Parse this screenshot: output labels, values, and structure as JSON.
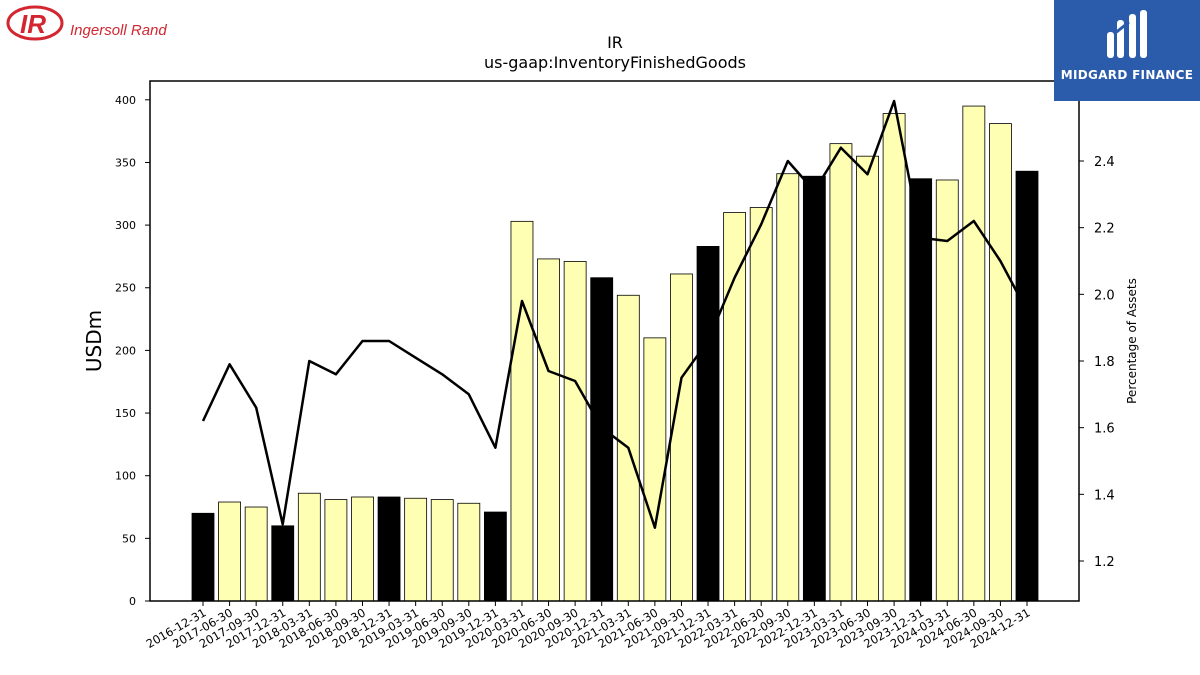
{
  "logos": {
    "company_name": "Ingersoll Rand",
    "company_mark": "IR",
    "publisher_name": "MIDGARD FINANCE"
  },
  "chart_data": {
    "type": "bar",
    "title": "IR",
    "subtitle": "us-gaap:InventoryFinishedGoods",
    "ylabel": "USDm",
    "y2label": "Percentage of Assets",
    "ylim": [
      0,
      415
    ],
    "y2lim": [
      1.08,
      2.64
    ],
    "yticks": [
      0,
      50,
      100,
      150,
      200,
      250,
      300,
      350,
      400
    ],
    "y2ticks": [
      1.2,
      1.4,
      1.6,
      1.8,
      2.0,
      2.2,
      2.4
    ],
    "categories": [
      "2016-12-31",
      "2017-06-30",
      "2017-09-30",
      "2017-12-31",
      "2018-03-31",
      "2018-06-30",
      "2018-09-30",
      "2018-12-31",
      "2019-03-31",
      "2019-06-30",
      "2019-09-30",
      "2019-12-31",
      "2020-03-31",
      "2020-06-30",
      "2020-09-30",
      "2020-12-31",
      "2021-03-31",
      "2021-06-30",
      "2021-09-30",
      "2021-12-31",
      "2022-03-31",
      "2022-06-30",
      "2022-09-30",
      "2022-12-31",
      "2023-03-31",
      "2023-06-30",
      "2023-09-30",
      "2023-12-31",
      "2024-03-31",
      "2024-06-30",
      "2024-09-30",
      "2024-12-31"
    ],
    "series": [
      {
        "kind": "bar",
        "values": [
          70,
          79,
          75,
          60,
          86,
          81,
          83,
          83,
          82,
          81,
          78,
          71,
          303,
          273,
          271,
          258,
          244,
          210,
          261,
          283,
          310,
          314,
          341,
          339,
          365,
          355,
          389,
          337,
          336,
          395,
          381,
          343
        ],
        "year_end": [
          true,
          false,
          false,
          true,
          false,
          false,
          false,
          true,
          false,
          false,
          false,
          true,
          false,
          false,
          false,
          true,
          false,
          false,
          false,
          true,
          false,
          false,
          false,
          true,
          false,
          false,
          false,
          true,
          false,
          false,
          false,
          true
        ]
      },
      {
        "kind": "line",
        "axis": "right",
        "values": [
          1.62,
          1.79,
          1.66,
          1.31,
          1.8,
          1.76,
          1.86,
          1.86,
          1.81,
          1.76,
          1.7,
          1.54,
          1.98,
          1.77,
          1.74,
          1.6,
          1.54,
          1.3,
          1.75,
          1.86,
          2.05,
          2.21,
          2.4,
          2.31,
          2.44,
          2.36,
          2.58,
          2.17,
          2.16,
          2.22,
          2.1,
          1.95
        ]
      }
    ],
    "colors": {
      "bar_year_end": "#000000",
      "bar_other": "#ffffb3",
      "line": "#000000",
      "frame": "#000000"
    },
    "grid": false
  }
}
